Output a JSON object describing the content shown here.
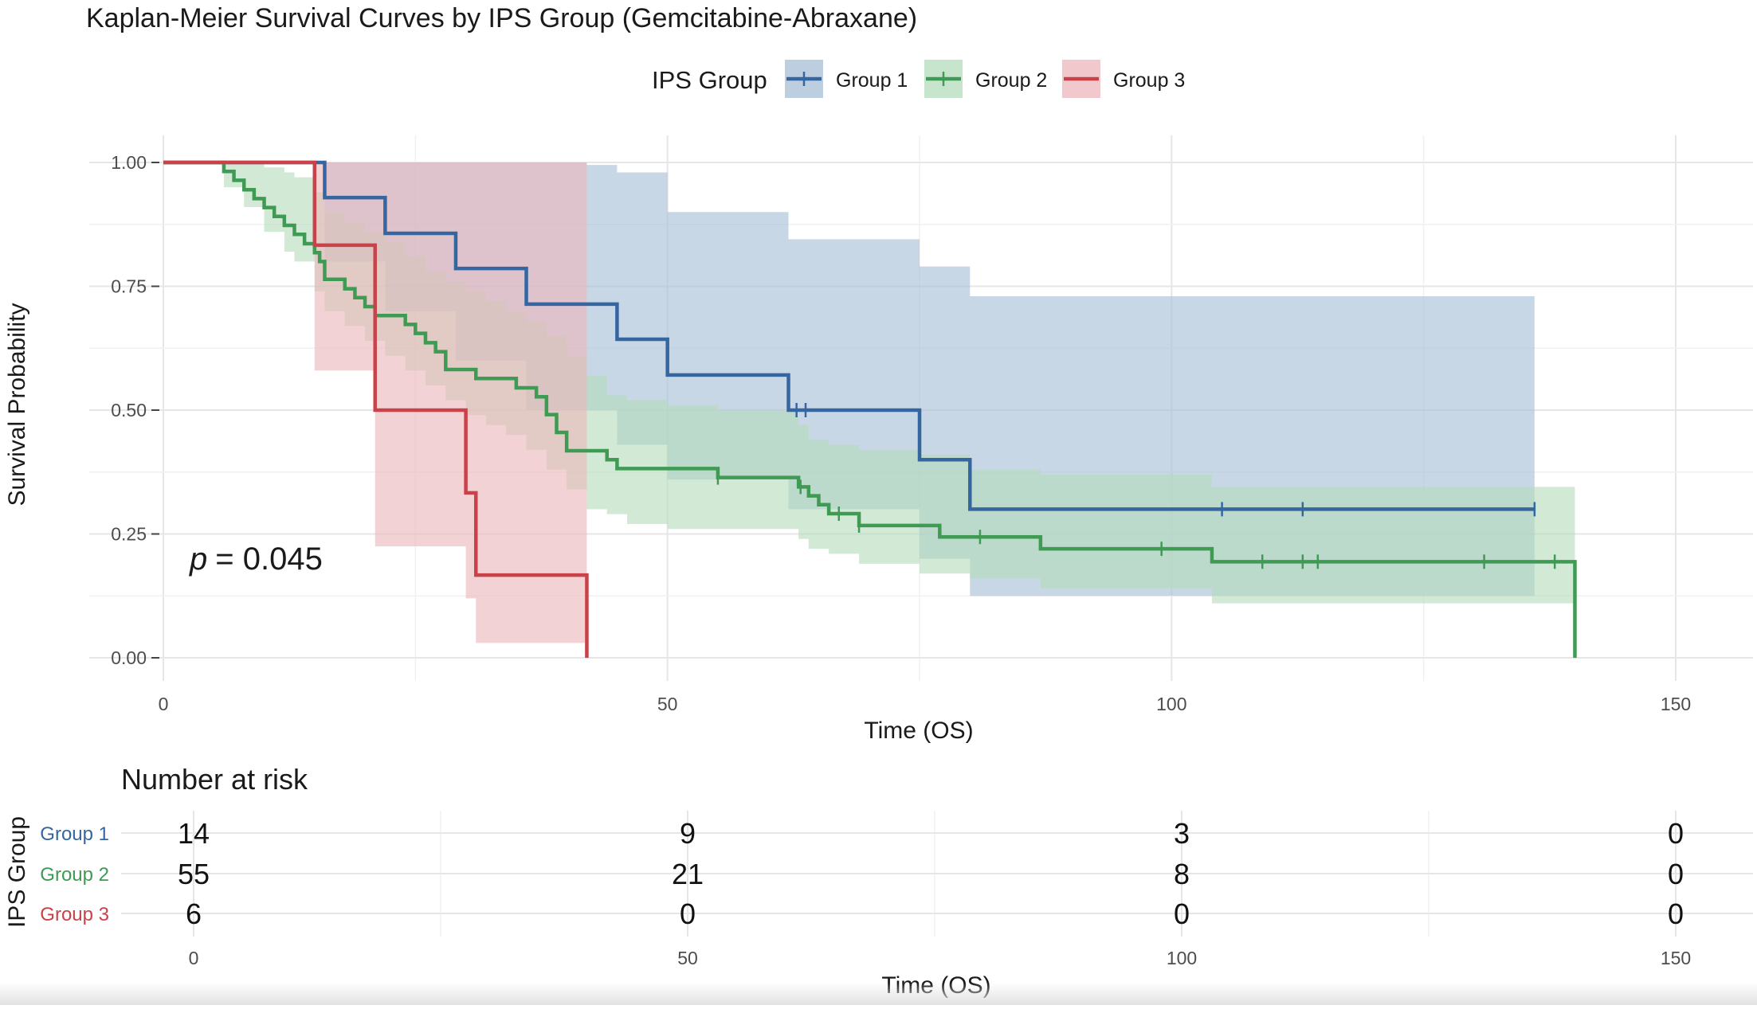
{
  "chart_data": {
    "type": "line",
    "title": "Kaplan-Meier Survival Curves by IPS Group (Gemcitabine-Abraxane)",
    "xlabel": "Time (OS)",
    "ylabel": "Survival Probability",
    "xlim": [
      0,
      155
    ],
    "ylim": [
      0,
      1
    ],
    "x_ticks": [
      "0",
      "50",
      "100",
      "150"
    ],
    "y_ticks": [
      "0.00",
      "0.25",
      "0.50",
      "0.75",
      "1.00"
    ],
    "grid": true,
    "legend": {
      "title": "IPS Group",
      "position": "top"
    },
    "annotation": {
      "p_label": "p",
      "p_value": "= 0.045"
    },
    "series": [
      {
        "name": "Group 1",
        "color": "#3566a0",
        "fill": "#a7bed6",
        "steps": [
          [
            0,
            1.0
          ],
          [
            16,
            0.929
          ],
          [
            22,
            0.857
          ],
          [
            29,
            0.786
          ],
          [
            36,
            0.714
          ],
          [
            45,
            0.643
          ],
          [
            50,
            0.571
          ],
          [
            62,
            0.5
          ],
          [
            75,
            0.4
          ],
          [
            80,
            0.3
          ],
          [
            136,
            0.3
          ]
        ],
        "ci": [
          [
            0,
            1.0,
            1.0
          ],
          [
            16,
            1.0,
            0.8
          ],
          [
            22,
            1.0,
            0.7
          ],
          [
            29,
            1.0,
            0.6
          ],
          [
            36,
            1.0,
            0.5
          ],
          [
            42,
            0.995,
            0.5
          ],
          [
            45,
            0.98,
            0.43
          ],
          [
            50,
            0.9,
            0.36
          ],
          [
            62,
            0.845,
            0.3
          ],
          [
            75,
            0.79,
            0.2
          ],
          [
            80,
            0.73,
            0.125
          ],
          [
            136,
            0.73,
            0.125
          ]
        ],
        "censor": [
          62.8,
          63.7,
          105,
          113,
          136
        ]
      },
      {
        "name": "Group 2",
        "color": "#3f9a53",
        "fill": "#b4dcbb",
        "steps": [
          [
            0,
            1.0
          ],
          [
            6,
            0.982
          ],
          [
            7,
            0.964
          ],
          [
            8,
            0.945
          ],
          [
            9,
            0.927
          ],
          [
            10,
            0.909
          ],
          [
            11,
            0.891
          ],
          [
            12,
            0.873
          ],
          [
            13,
            0.855
          ],
          [
            14,
            0.836
          ],
          [
            15,
            0.818
          ],
          [
            15.5,
            0.8
          ],
          [
            16,
            0.764
          ],
          [
            18,
            0.745
          ],
          [
            19,
            0.727
          ],
          [
            20,
            0.709
          ],
          [
            21,
            0.691
          ],
          [
            24,
            0.673
          ],
          [
            25,
            0.655
          ],
          [
            26,
            0.636
          ],
          [
            27,
            0.618
          ],
          [
            28,
            0.582
          ],
          [
            31,
            0.564
          ],
          [
            35,
            0.545
          ],
          [
            37,
            0.527
          ],
          [
            38,
            0.491
          ],
          [
            39,
            0.455
          ],
          [
            40,
            0.418
          ],
          [
            44,
            0.4
          ],
          [
            45,
            0.382
          ],
          [
            55,
            0.364
          ],
          [
            63,
            0.345
          ],
          [
            64,
            0.327
          ],
          [
            65,
            0.309
          ],
          [
            66,
            0.291
          ],
          [
            69,
            0.267
          ],
          [
            77,
            0.244
          ],
          [
            87,
            0.22
          ],
          [
            104,
            0.194
          ],
          [
            140,
            0.194
          ],
          [
            140,
            0.0
          ]
        ],
        "ci": [
          [
            0,
            1.0,
            1.0
          ],
          [
            6,
            1.0,
            0.95
          ],
          [
            8,
            1.0,
            0.91
          ],
          [
            10,
            0.99,
            0.86
          ],
          [
            12,
            0.98,
            0.82
          ],
          [
            13,
            0.97,
            0.8
          ],
          [
            15,
            0.94,
            0.74
          ],
          [
            16,
            0.9,
            0.7
          ],
          [
            18,
            0.88,
            0.67
          ],
          [
            20,
            0.86,
            0.64
          ],
          [
            22,
            0.84,
            0.61
          ],
          [
            24,
            0.81,
            0.58
          ],
          [
            26,
            0.78,
            0.55
          ],
          [
            28,
            0.76,
            0.52
          ],
          [
            30,
            0.74,
            0.49
          ],
          [
            32,
            0.72,
            0.47
          ],
          [
            34,
            0.7,
            0.45
          ],
          [
            36,
            0.68,
            0.42
          ],
          [
            38,
            0.65,
            0.38
          ],
          [
            40,
            0.61,
            0.34
          ],
          [
            42,
            0.57,
            0.3
          ],
          [
            44,
            0.53,
            0.29
          ],
          [
            46,
            0.52,
            0.27
          ],
          [
            50,
            0.51,
            0.26
          ],
          [
            55,
            0.5,
            0.26
          ],
          [
            63,
            0.47,
            0.24
          ],
          [
            64,
            0.44,
            0.22
          ],
          [
            66,
            0.43,
            0.21
          ],
          [
            69,
            0.42,
            0.19
          ],
          [
            75,
            0.41,
            0.17
          ],
          [
            80,
            0.38,
            0.16
          ],
          [
            87,
            0.37,
            0.14
          ],
          [
            104,
            0.345,
            0.11
          ],
          [
            140,
            0.345,
            0.11
          ]
        ],
        "censor": [
          55,
          63.2,
          67,
          69,
          81,
          99,
          109,
          113,
          114.5,
          131,
          138
        ]
      },
      {
        "name": "Group 3",
        "color": "#c94149",
        "fill": "#ecb7bc",
        "steps": [
          [
            0,
            1.0
          ],
          [
            15,
            0.833
          ],
          [
            21,
            0.5
          ],
          [
            30,
            0.333
          ],
          [
            31,
            0.167
          ],
          [
            42,
            0.167
          ],
          [
            42,
            0.0
          ]
        ],
        "ci": [
          [
            0,
            1.0,
            1.0
          ],
          [
            15,
            1.0,
            0.58
          ],
          [
            21,
            1.0,
            0.225
          ],
          [
            30,
            1.0,
            0.12
          ],
          [
            31,
            1.0,
            0.03
          ],
          [
            42,
            1.0,
            0.03
          ]
        ],
        "censor": []
      }
    ],
    "risk_table": {
      "title": "Number at risk",
      "ylabel": "IPS Group",
      "xlabel": "Time (OS)",
      "times": [
        "0",
        "50",
        "100",
        "150"
      ],
      "rows": [
        {
          "label": "Group 1",
          "values": [
            "14",
            "9",
            "3",
            "0"
          ]
        },
        {
          "label": "Group 2",
          "values": [
            "55",
            "21",
            "8",
            "0"
          ]
        },
        {
          "label": "Group 3",
          "values": [
            "6",
            "0",
            "0",
            "0"
          ]
        }
      ]
    }
  }
}
